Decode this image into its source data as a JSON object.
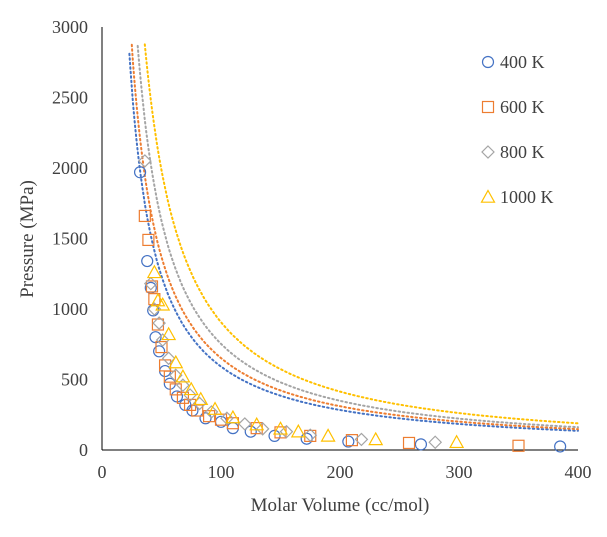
{
  "chart_data": {
    "type": "scatter",
    "xlabel": "Molar Volume (cc/mol)",
    "ylabel": "Pressure (MPa)",
    "xlim": [
      0,
      400
    ],
    "ylim": [
      0,
      3000
    ],
    "xticks": [
      "0",
      "100",
      "200",
      "300",
      "400"
    ],
    "yticks": [
      "0",
      "500",
      "1000",
      "1500",
      "2000",
      "2500",
      "3000"
    ],
    "grid": false,
    "legend_position": "top-right",
    "trendlines": "dotted power-law fit per series",
    "series": [
      {
        "name": "400 K",
        "marker": "circle",
        "color": "#4472C4",
        "points": [
          [
            32,
            1970
          ],
          [
            38,
            1340
          ],
          [
            41,
            1150
          ],
          [
            43,
            990
          ],
          [
            45,
            800
          ],
          [
            48,
            700
          ],
          [
            53,
            560
          ],
          [
            57,
            470
          ],
          [
            63,
            380
          ],
          [
            70,
            320
          ],
          [
            76,
            280
          ],
          [
            87,
            225
          ],
          [
            100,
            200
          ],
          [
            110,
            155
          ],
          [
            125,
            130
          ],
          [
            145,
            100
          ],
          [
            172,
            80
          ],
          [
            207,
            60
          ],
          [
            268,
            40
          ],
          [
            385,
            25
          ]
        ],
        "fit": {
          "a": 78000,
          "b": -1.06
        }
      },
      {
        "name": "600 K",
        "marker": "square",
        "color": "#ED7D31",
        "points": [
          [
            36,
            1660
          ],
          [
            39,
            1490
          ],
          [
            42,
            1160
          ],
          [
            44,
            1070
          ],
          [
            47,
            890
          ],
          [
            50,
            730
          ],
          [
            53,
            600
          ],
          [
            57,
            520
          ],
          [
            62,
            430
          ],
          [
            68,
            370
          ],
          [
            74,
            320
          ],
          [
            80,
            280
          ],
          [
            90,
            240
          ],
          [
            100,
            215
          ],
          [
            110,
            190
          ],
          [
            130,
            155
          ],
          [
            150,
            125
          ],
          [
            175,
            100
          ],
          [
            210,
            70
          ],
          [
            258,
            50
          ],
          [
            350,
            30
          ]
        ],
        "fit": {
          "a": 90000,
          "b": -1.07
        }
      },
      {
        "name": "800 K",
        "marker": "diamond",
        "color": "#A5A5A5",
        "points": [
          [
            36,
            2050
          ],
          [
            41,
            1180
          ],
          [
            44,
            1000
          ],
          [
            48,
            900
          ],
          [
            51,
            780
          ],
          [
            56,
            650
          ],
          [
            62,
            530
          ],
          [
            68,
            460
          ],
          [
            74,
            390
          ],
          [
            82,
            330
          ],
          [
            92,
            270
          ],
          [
            105,
            225
          ],
          [
            120,
            185
          ],
          [
            135,
            150
          ],
          [
            155,
            130
          ],
          [
            175,
            105
          ],
          [
            218,
            75
          ],
          [
            280,
            55
          ]
        ],
        "fit": {
          "a": 125000,
          "b": -1.11
        }
      },
      {
        "name": "1000 K",
        "marker": "triangle",
        "color": "#FFC000",
        "points": [
          [
            44,
            1260
          ],
          [
            47,
            1060
          ],
          [
            51,
            1030
          ],
          [
            56,
            820
          ],
          [
            62,
            620
          ],
          [
            68,
            520
          ],
          [
            75,
            430
          ],
          [
            83,
            360
          ],
          [
            95,
            290
          ],
          [
            110,
            230
          ],
          [
            130,
            180
          ],
          [
            150,
            150
          ],
          [
            165,
            130
          ],
          [
            190,
            100
          ],
          [
            230,
            75
          ],
          [
            298,
            55
          ]
        ],
        "fit": {
          "a": 165000,
          "b": -1.13
        }
      }
    ]
  }
}
